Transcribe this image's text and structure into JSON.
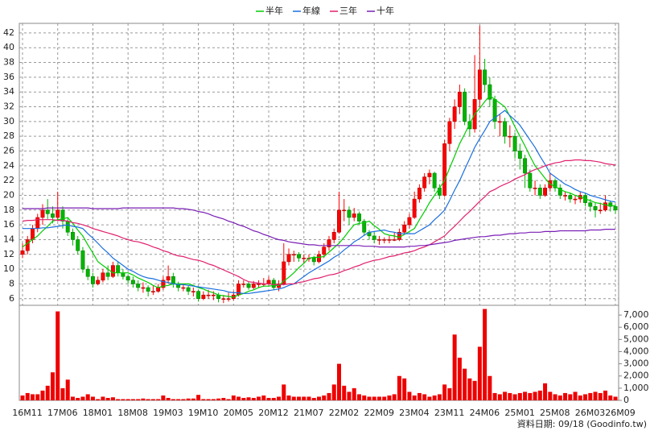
{
  "chart_data": {
    "type": "candlestick",
    "categories": [
      "16M11",
      null,
      null,
      null,
      null,
      null,
      null,
      "17M06",
      null,
      null,
      null,
      null,
      null,
      null,
      "18M01",
      null,
      null,
      null,
      null,
      null,
      null,
      "18M08",
      null,
      null,
      null,
      null,
      null,
      null,
      "19M03",
      null,
      null,
      null,
      null,
      null,
      null,
      "19M10",
      null,
      null,
      null,
      null,
      null,
      null,
      "20M05",
      null,
      null,
      null,
      null,
      null,
      null,
      "20M12",
      null,
      null,
      null,
      null,
      null,
      null,
      "21M07",
      null,
      null,
      null,
      null,
      null,
      null,
      "22M02",
      null,
      null,
      null,
      null,
      null,
      null,
      "22M09",
      null,
      null,
      null,
      null,
      null,
      null,
      "23M04",
      null,
      null,
      null,
      null,
      null,
      null,
      "23M11",
      null,
      null,
      null,
      null,
      null,
      null,
      "24M06",
      null,
      null,
      null,
      null,
      null,
      null,
      "25M01",
      null,
      null,
      null,
      null,
      null,
      null,
      "25M08",
      null,
      null,
      null,
      null,
      null,
      null,
      "26M03",
      null,
      null,
      null,
      null,
      null,
      "26M09"
    ],
    "ohlc": [
      [
        12,
        13.5,
        11.5,
        12.5
      ],
      [
        12.5,
        14.5,
        12,
        14
      ],
      [
        14,
        16,
        13.5,
        15.5
      ],
      [
        15.5,
        17.5,
        15,
        17
      ],
      [
        17,
        18.8,
        16,
        18
      ],
      [
        18,
        19.5,
        16.8,
        17.5
      ],
      [
        17.5,
        18.5,
        16.2,
        17
      ],
      [
        17,
        20.5,
        16.5,
        18
      ],
      [
        18,
        18.5,
        15.5,
        16.5
      ],
      [
        16.5,
        17,
        14.5,
        15
      ],
      [
        15,
        15.5,
        13.2,
        14
      ],
      [
        14,
        14.5,
        12,
        12.5
      ],
      [
        12.5,
        13,
        9.5,
        10
      ],
      [
        10,
        10.5,
        8.5,
        9
      ],
      [
        9,
        9.5,
        7.5,
        8
      ],
      [
        8,
        9,
        7.8,
        8.5
      ],
      [
        8.5,
        10,
        8.2,
        9.5
      ],
      [
        9.5,
        10.5,
        8.5,
        9
      ],
      [
        9,
        11,
        8.8,
        10.5
      ],
      [
        10.5,
        11,
        9,
        9.5
      ],
      [
        9.5,
        10,
        8.6,
        9
      ],
      [
        9,
        9.3,
        8,
        8.5
      ],
      [
        8.5,
        9,
        7.5,
        8
      ],
      [
        8,
        8.5,
        7,
        7.5
      ],
      [
        7.5,
        8.2,
        6.8,
        7.5
      ],
      [
        7.5,
        7.8,
        6.3,
        7
      ],
      [
        7,
        7.8,
        6.5,
        7
      ],
      [
        7,
        8,
        6.8,
        7.5
      ],
      [
        7.5,
        9,
        7.2,
        8.5
      ],
      [
        8.5,
        10.5,
        8,
        9
      ],
      [
        9,
        9.5,
        7.5,
        8
      ],
      [
        8,
        8.3,
        7,
        7.5
      ],
      [
        7.5,
        8,
        7,
        7.5
      ],
      [
        7.5,
        7.8,
        6.5,
        7
      ],
      [
        7,
        7.5,
        6.3,
        7
      ],
      [
        7,
        7.2,
        5.6,
        6
      ],
      [
        6,
        7,
        5.8,
        6.5
      ],
      [
        6.5,
        7.2,
        6,
        6.5
      ],
      [
        6.5,
        7,
        5.8,
        6.5
      ],
      [
        6.5,
        6.8,
        5.5,
        6
      ],
      [
        6,
        6.5,
        5.4,
        6
      ],
      [
        6,
        6.8,
        5.6,
        6
      ],
      [
        6,
        7,
        5.8,
        6.5
      ],
      [
        6.5,
        8.5,
        6.3,
        8
      ],
      [
        8,
        8.5,
        7.5,
        8
      ],
      [
        8,
        8.3,
        7.2,
        7.5
      ],
      [
        7.5,
        8.4,
        7.3,
        8
      ],
      [
        8,
        8.5,
        7.5,
        8
      ],
      [
        8,
        8.8,
        7.6,
        8
      ],
      [
        8,
        9,
        7.8,
        8.5
      ],
      [
        8.5,
        8.8,
        7.2,
        7.5
      ],
      [
        7.5,
        8.5,
        7,
        8
      ],
      [
        8,
        13.5,
        7.8,
        11
      ],
      [
        11,
        12.8,
        10.5,
        12
      ],
      [
        12,
        12.5,
        11,
        12
      ],
      [
        12,
        12.3,
        11,
        11.5
      ],
      [
        11.5,
        12,
        10.8,
        11.5
      ],
      [
        11.5,
        12,
        11,
        11.5
      ],
      [
        11.5,
        11.8,
        10.5,
        11
      ],
      [
        11,
        12.5,
        10.8,
        12
      ],
      [
        12,
        13.5,
        11.5,
        13
      ],
      [
        13,
        14.5,
        12.5,
        14
      ],
      [
        14,
        15.5,
        13.5,
        15
      ],
      [
        15,
        20.5,
        14.8,
        18
      ],
      [
        18,
        19.5,
        16.5,
        18
      ],
      [
        18,
        18.5,
        16,
        17
      ],
      [
        17,
        18.3,
        16.5,
        17.5
      ],
      [
        17.5,
        17.8,
        16,
        16.5
      ],
      [
        16.5,
        16.8,
        14.5,
        15
      ],
      [
        15,
        15.3,
        14,
        14.5
      ],
      [
        14.5,
        15,
        13.5,
        14
      ],
      [
        14,
        14.5,
        13.3,
        14
      ],
      [
        14,
        14.3,
        13.5,
        14
      ],
      [
        14,
        14.5,
        13.5,
        14
      ],
      [
        14,
        15,
        13.8,
        14
      ],
      [
        14,
        15.5,
        13.8,
        15
      ],
      [
        15,
        16.5,
        14.8,
        16
      ],
      [
        16,
        17.5,
        15.5,
        17
      ],
      [
        17,
        20.5,
        16.8,
        19.5
      ],
      [
        19.5,
        21.5,
        19,
        21
      ],
      [
        21,
        23,
        20.5,
        22.5
      ],
      [
        22.5,
        23.5,
        21.5,
        23
      ],
      [
        23,
        23.2,
        20.5,
        21
      ],
      [
        21,
        21.5,
        19.5,
        20
      ],
      [
        20,
        27.5,
        19.8,
        27
      ],
      [
        27,
        30.5,
        26,
        30
      ],
      [
        30,
        33,
        29,
        32
      ],
      [
        32,
        35,
        31,
        34
      ],
      [
        34,
        34.5,
        29.5,
        30
      ],
      [
        30,
        31,
        28,
        29
      ],
      [
        29,
        39,
        28.5,
        33
      ],
      [
        33,
        43,
        32,
        37
      ],
      [
        37,
        38.5,
        34,
        35
      ],
      [
        35,
        36,
        32,
        33
      ],
      [
        33,
        33.5,
        29,
        30
      ],
      [
        30,
        31,
        28,
        30
      ],
      [
        30,
        30.5,
        27,
        28
      ],
      [
        28,
        29.5,
        26.5,
        28
      ],
      [
        28,
        28.5,
        25,
        26
      ],
      [
        26,
        27,
        23.5,
        25
      ],
      [
        25,
        25.5,
        21,
        23
      ],
      [
        23,
        23.5,
        20.5,
        21
      ],
      [
        21,
        22,
        20,
        21
      ],
      [
        21,
        21.5,
        19.5,
        20
      ],
      [
        20,
        21.5,
        19.8,
        21
      ],
      [
        21,
        23,
        20.5,
        22
      ],
      [
        22,
        22.3,
        20.5,
        21
      ],
      [
        21,
        21.5,
        19.5,
        20
      ],
      [
        20,
        20.5,
        19.3,
        20
      ],
      [
        20,
        20.3,
        19,
        19.5
      ],
      [
        19.5,
        20,
        18.8,
        19.5
      ],
      [
        19.5,
        20.5,
        19,
        20
      ],
      [
        20,
        20.3,
        18.5,
        19
      ],
      [
        19,
        19.5,
        17.8,
        18.5
      ],
      [
        18.5,
        19,
        17,
        18
      ],
      [
        18,
        19,
        17.5,
        18
      ],
      [
        18,
        20,
        17.8,
        19
      ],
      [
        19,
        19.3,
        17.8,
        18.5
      ],
      [
        18.5,
        18.8,
        17.5,
        18
      ]
    ],
    "up_color": "#ff0000",
    "down_color": "#00b400",
    "ylim": [
      5.1,
      43.3
    ],
    "yticks": [
      6,
      8,
      10,
      12,
      14,
      16,
      18,
      20,
      22,
      24,
      26,
      28,
      30,
      32,
      34,
      36,
      38,
      40,
      42
    ],
    "grid": true,
    "series": [
      {
        "name": "半年",
        "color": "#00cc00",
        "values": [
          13,
          13.5,
          14,
          14.5,
          15.2,
          15.8,
          16.5,
          16.7,
          16.8,
          17,
          16.2,
          15.3,
          14.5,
          13.3,
          12.2,
          11,
          10.5,
          10,
          9.5,
          9.5,
          9.5,
          9.5,
          9.2,
          8.8,
          8.5,
          8.2,
          7.8,
          7.5,
          7.7,
          7.8,
          8,
          8,
          8,
          8,
          7.8,
          7.5,
          7.3,
          7,
          6.8,
          6.5,
          6.4,
          6.3,
          6.2,
          6.5,
          6.7,
          7,
          7.2,
          7.5,
          7.7,
          7.7,
          7.8,
          7.8,
          8.4,
          8.9,
          9.5,
          10.2,
          10.8,
          11.5,
          11.6,
          11.6,
          11.7,
          12.3,
          12.9,
          13.5,
          14.3,
          15.2,
          16,
          16.2,
          16.3,
          16.5,
          15.9,
          15.4,
          14.8,
          14.6,
          14.5,
          14.3,
          14.7,
          15.1,
          15.5,
          16.7,
          17.8,
          19,
          20,
          21,
          22,
          23.7,
          25.3,
          27,
          28.3,
          29.7,
          31,
          31.8,
          32.7,
          33.5,
          33,
          32.5,
          32,
          30.7,
          29.3,
          28,
          26.7,
          25.3,
          24,
          23.2,
          22.3,
          21.5,
          21.2,
          20.8,
          20.5,
          20.3,
          20,
          19.8,
          19.5,
          19.3,
          19,
          18.9,
          18.7,
          18.6,
          18.6
        ]
      },
      {
        "name": "年線",
        "color": "#1a6fe0",
        "values": [
          15.5,
          15.5,
          15.5,
          15.5,
          15.6,
          15.6,
          15.7,
          15.8,
          15.9,
          16,
          15.8,
          15.7,
          15.5,
          14.8,
          14.2,
          13.5,
          12.8,
          12.2,
          11.5,
          11,
          10.5,
          10,
          9.7,
          9.3,
          9,
          8.8,
          8.7,
          8.5,
          8.3,
          8.2,
          8,
          7.9,
          7.9,
          7.8,
          7.7,
          7.6,
          7.5,
          7.4,
          7.3,
          7.2,
          7.1,
          6.9,
          6.8,
          6.8,
          6.7,
          6.7,
          6.8,
          6.9,
          7,
          7.1,
          7.2,
          7.3,
          7.5,
          7.8,
          8,
          8.5,
          9,
          9.5,
          9.9,
          10.3,
          10.7,
          11.1,
          11.6,
          12,
          12.6,
          13.1,
          13.7,
          14.1,
          14.6,
          15,
          15.1,
          15.2,
          15.3,
          15.1,
          15,
          14.8,
          14.8,
          14.8,
          14.8,
          15.2,
          15.6,
          16,
          16.7,
          17.3,
          18,
          19.3,
          20.7,
          22,
          23.5,
          25,
          26.5,
          27.7,
          28.8,
          30,
          30.5,
          31,
          31.5,
          30.8,
          30.2,
          29.5,
          28.5,
          27.5,
          26.5,
          25.3,
          24.2,
          23,
          22.5,
          22,
          21.5,
          21.2,
          20.8,
          20.5,
          20.3,
          20,
          19.8,
          19.6,
          19.4,
          19.2,
          19.1
        ]
      },
      {
        "name": "三年",
        "color": "#e0206e",
        "values": [
          16.5,
          16.6,
          16.6,
          16.7,
          16.7,
          16.7,
          16.7,
          16.6,
          16.6,
          16.5,
          16.3,
          16.2,
          16,
          15.8,
          15.5,
          15.3,
          15.1,
          14.9,
          14.7,
          14.5,
          14.2,
          14,
          13.8,
          13.7,
          13.5,
          13.3,
          13,
          12.8,
          12.5,
          12.3,
          12,
          11.8,
          11.7,
          11.5,
          11.3,
          11.2,
          11,
          10.7,
          10.5,
          10.2,
          9.9,
          9.6,
          9.3,
          9,
          8.6,
          8.3,
          8.2,
          8.1,
          8,
          8,
          7.9,
          7.9,
          7.9,
          8,
          8,
          8.2,
          8.3,
          8.5,
          8.7,
          8.8,
          9,
          9.2,
          9.3,
          9.5,
          9.8,
          10,
          10.3,
          10.5,
          10.8,
          11,
          11.2,
          11.3,
          11.5,
          11.7,
          11.8,
          12,
          12.2,
          12.3,
          12.5,
          12.8,
          13,
          13.3,
          13.7,
          14.1,
          14.5,
          15.2,
          15.8,
          16.5,
          17.2,
          17.8,
          18.5,
          19.2,
          19.8,
          20.5,
          20.8,
          21.2,
          21.5,
          21.8,
          22.2,
          22.5,
          22.8,
          23.2,
          23.5,
          23.7,
          24,
          24.2,
          24.4,
          24.5,
          24.7,
          24.7,
          24.8,
          24.8,
          24.7,
          24.7,
          24.6,
          24.5,
          24.3,
          24.2,
          24.1
        ]
      },
      {
        "name": "十年",
        "color": "#7a1fb5",
        "values": [
          18.2,
          18.2,
          18.2,
          18.2,
          18.2,
          18.3,
          18.3,
          18.3,
          18.3,
          18.3,
          18.3,
          18.3,
          18.3,
          18.3,
          18.2,
          18.2,
          18.2,
          18.2,
          18.2,
          18.2,
          18.3,
          18.3,
          18.3,
          18.3,
          18.3,
          18.3,
          18.3,
          18.3,
          18.3,
          18.3,
          18.3,
          18.2,
          18.2,
          18.1,
          18,
          17.8,
          17.7,
          17.5,
          17.2,
          17,
          16.8,
          16.5,
          16.3,
          16,
          15.8,
          15.5,
          15.2,
          15,
          14.7,
          14.5,
          14.2,
          14,
          13.9,
          13.7,
          13.6,
          13.5,
          13.4,
          13.3,
          13.3,
          13.2,
          13.2,
          13.2,
          13.2,
          13.2,
          13.2,
          13.2,
          13.2,
          13.2,
          13.1,
          13.1,
          13.1,
          13,
          13,
          13,
          13,
          13,
          13,
          13.1,
          13.1,
          13.2,
          13.2,
          13.3,
          13.4,
          13.5,
          13.6,
          13.7,
          13.9,
          14,
          14.1,
          14.2,
          14.3,
          14.4,
          14.4,
          14.5,
          14.6,
          14.6,
          14.7,
          14.8,
          14.8,
          14.9,
          14.9,
          15,
          15,
          15,
          15.1,
          15.1,
          15.1,
          15.2,
          15.2,
          15.2,
          15.2,
          15.2,
          15.2,
          15.3,
          15.3,
          15.3,
          15.4,
          15.4,
          15.4
        ]
      }
    ],
    "volume": {
      "color": "#ee0000",
      "ylim": [
        0,
        7800
      ],
      "yticks": [
        0,
        {
          "value": 1000,
          "label": "1,000"
        },
        {
          "value": 2000,
          "label": "2,000"
        },
        {
          "value": 3000,
          "label": "3,000"
        },
        {
          "value": 4000,
          "label": "4,000"
        },
        {
          "value": 5000,
          "label": "5,000"
        },
        {
          "value": 6000,
          "label": "6,000"
        },
        {
          "value": 7000,
          "label": "7,000"
        }
      ],
      "values": [
        400,
        600,
        500,
        500,
        800,
        1200,
        2300,
        7300,
        1000,
        1700,
        300,
        200,
        300,
        500,
        300,
        100,
        300,
        200,
        250,
        100,
        100,
        100,
        100,
        100,
        150,
        100,
        100,
        100,
        400,
        200,
        100,
        100,
        100,
        150,
        150,
        450,
        100,
        100,
        100,
        150,
        200,
        100,
        400,
        300,
        200,
        250,
        200,
        300,
        400,
        200,
        200,
        300,
        1300,
        400,
        300,
        300,
        300,
        300,
        200,
        300,
        400,
        600,
        1300,
        3000,
        1200,
        700,
        1000,
        500,
        400,
        300,
        300,
        300,
        300,
        400,
        500,
        2000,
        1800,
        700,
        400,
        600,
        500,
        300,
        400,
        500,
        1300,
        1000,
        5400,
        3500,
        2600,
        1800,
        1600,
        4400,
        7500,
        2000,
        600,
        500,
        700,
        600,
        500,
        600,
        700,
        600,
        700,
        800,
        1400,
        700,
        500,
        400,
        600,
        500,
        700,
        400,
        500,
        600,
        700,
        600,
        800,
        400,
        300
      ]
    },
    "source_note": "資料日期: 09/18 (Goodinfo.tw)"
  }
}
